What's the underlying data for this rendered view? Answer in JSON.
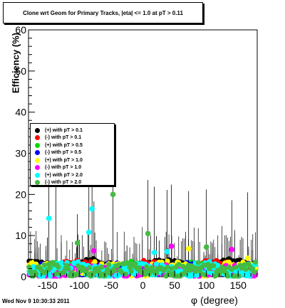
{
  "chart_data": {
    "type": "scatter",
    "title": "Clone wrt Geom for Primary Tracks, |eta| <= 1.0 at pT > 0.11",
    "xlabel": "φ (degree)",
    "ylabel": "Efficiency (%)",
    "xlim": [
      -180,
      180
    ],
    "ylim": [
      0,
      60
    ],
    "x_ticks": [
      -150,
      -100,
      -50,
      0,
      50,
      100,
      150
    ],
    "y_ticks": [
      0,
      10,
      20,
      30,
      40,
      50,
      60
    ],
    "grid": false,
    "legend_position": "upper-left",
    "series": [
      {
        "name": "(+) with pT > 0.1",
        "color": "#000000",
        "base": 3.0,
        "spread": 0.8,
        "phase": 0
      },
      {
        "name": "(-) with pT > 0.1",
        "color": "#ff0000",
        "base": 2.6,
        "spread": 0.9,
        "phase": 1
      },
      {
        "name": "(+) with pT > 0.5",
        "color": "#00dd00",
        "base": 2.2,
        "spread": 1.0,
        "phase": 2
      },
      {
        "name": "(-) with pT > 0.5",
        "color": "#0000ff",
        "base": 1.9,
        "spread": 1.0,
        "phase": 3
      },
      {
        "name": "(+) with pT > 1.0",
        "color": "#ffff00",
        "base": 1.8,
        "spread": 1.4,
        "phase": 4
      },
      {
        "name": "(-) with pT > 1.0",
        "color": "#ff00ff",
        "base": 1.3,
        "spread": 1.3,
        "phase": 5
      },
      {
        "name": "(+) with pT > 2.0",
        "color": "#00ffff",
        "base": 1.6,
        "spread": 1.6,
        "phase": 6
      },
      {
        "name": "(-) with pT > 2.0",
        "color": "#44bb44",
        "base": 1.4,
        "spread": 1.6,
        "phase": 7
      }
    ],
    "highlights": [
      {
        "series": 4,
        "x": -137,
        "y": 24.0
      },
      {
        "series": 6,
        "x": -148,
        "y": 14.2
      },
      {
        "series": 6,
        "x": -80,
        "y": 16.5
      },
      {
        "series": 6,
        "x": -85,
        "y": 10.8
      },
      {
        "series": 7,
        "x": -47,
        "y": 20.0
      },
      {
        "series": 7,
        "x": -103,
        "y": 8.2
      },
      {
        "series": 7,
        "x": 8,
        "y": 10.5
      },
      {
        "series": 7,
        "x": 100,
        "y": 7.2
      },
      {
        "series": 5,
        "x": -77,
        "y": 6.3
      },
      {
        "series": 5,
        "x": 45,
        "y": 7.4
      },
      {
        "series": 5,
        "x": 140,
        "y": 6.6
      },
      {
        "series": 6,
        "x": 18,
        "y": 5.9
      },
      {
        "series": 6,
        "x": 38,
        "y": 6.1
      },
      {
        "series": 4,
        "x": 72,
        "y": 6.8
      },
      {
        "series": 4,
        "x": 165,
        "y": 4.5
      }
    ]
  },
  "timestamp": "Wed Nov  9 10:30:33 2011"
}
